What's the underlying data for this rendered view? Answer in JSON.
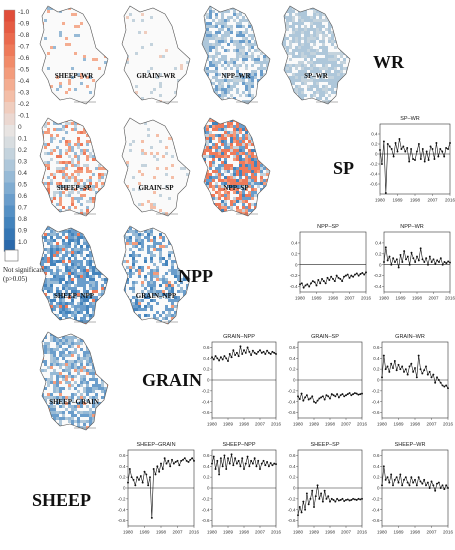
{
  "legend": {
    "ticks": [
      "-1.0",
      "-0.9",
      "-0.8",
      "-0.7",
      "-0.6",
      "-0.5",
      "-0.4",
      "-0.3",
      "-0.2",
      "-0.1",
      "0",
      "0.1",
      "0.2",
      "0.3",
      "0.4",
      "0.5",
      "0.6",
      "0.7",
      "0.8",
      "0.9",
      "1.0"
    ],
    "colors": [
      "#e04d3a",
      "#e55b43",
      "#ea6a4e",
      "#ee7a5a",
      "#f18b69",
      "#f39c7c",
      "#f4ad91",
      "#f4bea7",
      "#f0cdbe",
      "#ebd8d1",
      "#e8e4e2",
      "#d8dde0",
      "#c4d3dd",
      "#aec7da",
      "#97bad6",
      "#80acd1",
      "#6a9dcb",
      "#5590c4",
      "#4383bc",
      "#3576b4",
      "#2b69ab"
    ],
    "not_significant_line1": "Not significant",
    "not_significant_line2": "(p>0.05)"
  },
  "maps": [
    {
      "label": "SHEEP–WR"
    },
    {
      "label": "GRAIN–WR"
    },
    {
      "label": "NPP–WR"
    },
    {
      "label": "SP–WR"
    },
    {
      "label": "SHEEP–SP"
    },
    {
      "label": "GRAIN–SP"
    },
    {
      "label": "NPP–SP"
    },
    {
      "label": "SHEEP–NPP"
    },
    {
      "label": "GRAIN–NPP"
    },
    {
      "label": "SHEEP–GRAIN"
    }
  ],
  "row_labels": [
    "WR",
    "SP",
    "NPP",
    "GRAIN",
    "SHEEP"
  ],
  "chart_data": [
    {
      "type": "line",
      "title": "SP–WR",
      "x": [
        1980,
        1981,
        1982,
        1983,
        1984,
        1985,
        1986,
        1987,
        1988,
        1989,
        1990,
        1991,
        1992,
        1993,
        1994,
        1995,
        1996,
        1997,
        1998,
        1999,
        2000,
        2001,
        2002,
        2003,
        2004,
        2005,
        2006,
        2007,
        2008,
        2009,
        2010,
        2011,
        2012,
        2013,
        2014,
        2015,
        2016
      ],
      "values": [
        0.08,
        -0.2,
        0.25,
        -0.78,
        0.2,
        0.15,
        0.1,
        -0.05,
        0.22,
        0.05,
        0.3,
        0.1,
        0.15,
        0.05,
        0.12,
        -0.15,
        0.1,
        -0.1,
        -0.12,
        0.05,
        0.2,
        -0.1,
        0.1,
        -0.15,
        0.05,
        -0.12,
        0.15,
        0.1,
        -0.1,
        0.22,
        -0.05,
        0.1,
        0.05,
        -0.05,
        0.12,
        0.1,
        0.22
      ],
      "ylim": [
        -0.8,
        0.6
      ],
      "yticks": [
        -0.6,
        -0.4,
        -0.2,
        0,
        0.2,
        0.4
      ],
      "xticks": [
        1980,
        1989,
        1998,
        2007,
        2016
      ]
    },
    {
      "type": "line",
      "title": "NPP–SP",
      "x": [
        1980,
        1981,
        1982,
        1983,
        1984,
        1985,
        1986,
        1987,
        1988,
        1989,
        1990,
        1991,
        1992,
        1993,
        1994,
        1995,
        1996,
        1997,
        1998,
        1999,
        2000,
        2001,
        2002,
        2003,
        2004,
        2005,
        2006,
        2007,
        2008,
        2009,
        2010,
        2011,
        2012,
        2013,
        2014,
        2015,
        2016
      ],
      "values": [
        -0.36,
        -0.34,
        -0.42,
        -0.38,
        -0.36,
        -0.4,
        -0.34,
        -0.3,
        -0.32,
        -0.38,
        -0.28,
        -0.34,
        -0.26,
        -0.3,
        -0.34,
        -0.24,
        -0.28,
        -0.22,
        -0.26,
        -0.3,
        -0.2,
        -0.24,
        -0.26,
        -0.3,
        -0.22,
        -0.2,
        -0.18,
        -0.24,
        -0.2,
        -0.22,
        -0.18,
        -0.16,
        -0.2,
        -0.17,
        -0.15,
        -0.18,
        -0.14
      ],
      "ylim": [
        -0.5,
        0.6
      ],
      "yticks": [
        -0.4,
        -0.2,
        0,
        0.2,
        0.4
      ],
      "xticks": [
        1980,
        1989,
        1998,
        2007,
        2016
      ]
    },
    {
      "type": "line",
      "title": "NPP–WR",
      "x": [
        1980,
        1981,
        1982,
        1983,
        1984,
        1985,
        1986,
        1987,
        1988,
        1989,
        1990,
        1991,
        1992,
        1993,
        1994,
        1995,
        1996,
        1997,
        1998,
        1999,
        2000,
        2001,
        2002,
        2003,
        2004,
        2005,
        2006,
        2007,
        2008,
        2009,
        2010,
        2011,
        2012,
        2013,
        2014,
        2015,
        2016
      ],
      "values": [
        0.05,
        0.32,
        0.08,
        0.15,
        0.0,
        0.12,
        0.05,
        0.1,
        -0.05,
        0.18,
        0.05,
        0.25,
        0.1,
        0.15,
        0.0,
        0.22,
        0.12,
        0.05,
        0.15,
        0.08,
        0.3,
        0.1,
        0.05,
        0.12,
        0.0,
        0.15,
        0.05,
        0.1,
        0.02,
        0.08,
        0.05,
        0.12,
        0.0,
        0.05,
        0.03,
        0.06,
        0.04
      ],
      "ylim": [
        -0.5,
        0.6
      ],
      "yticks": [
        -0.4,
        -0.2,
        0,
        0.2,
        0.4
      ],
      "xticks": [
        1980,
        1989,
        1998,
        2007,
        2016
      ]
    },
    {
      "type": "line",
      "title": "GRAIN–NPP",
      "x": [
        1980,
        1981,
        1982,
        1983,
        1984,
        1985,
        1986,
        1987,
        1988,
        1989,
        1990,
        1991,
        1992,
        1993,
        1994,
        1995,
        1996,
        1997,
        1998,
        1999,
        2000,
        2001,
        2002,
        2003,
        2004,
        2005,
        2006,
        2007,
        2008,
        2009,
        2010,
        2011,
        2012,
        2013,
        2014,
        2015,
        2016
      ],
      "values": [
        0.42,
        0.38,
        0.44,
        0.4,
        0.36,
        0.42,
        0.38,
        0.44,
        0.4,
        0.35,
        0.48,
        0.42,
        0.55,
        0.46,
        0.5,
        0.44,
        0.62,
        0.48,
        0.55,
        0.5,
        0.6,
        0.52,
        0.46,
        0.54,
        0.5,
        0.48,
        0.52,
        0.55,
        0.5,
        0.52,
        0.48,
        0.54,
        0.5,
        0.48,
        0.52,
        0.5,
        0.48
      ],
      "ylim": [
        -0.7,
        0.7
      ],
      "yticks": [
        -0.6,
        -0.4,
        -0.2,
        0,
        0.2,
        0.4,
        0.6
      ],
      "xticks": [
        1980,
        1989,
        1998,
        2007,
        2016
      ]
    },
    {
      "type": "line",
      "title": "GRAIN–SP",
      "x": [
        1980,
        1981,
        1982,
        1983,
        1984,
        1985,
        1986,
        1987,
        1988,
        1989,
        1990,
        1991,
        1992,
        1993,
        1994,
        1995,
        1996,
        1997,
        1998,
        1999,
        2000,
        2001,
        2002,
        2003,
        2004,
        2005,
        2006,
        2007,
        2008,
        2009,
        2010,
        2011,
        2012,
        2013,
        2014,
        2015,
        2016
      ],
      "values": [
        -0.3,
        -0.35,
        -0.25,
        -0.38,
        -0.32,
        -0.28,
        -0.36,
        -0.34,
        -0.3,
        -0.4,
        -0.42,
        -0.38,
        -0.34,
        -0.32,
        -0.3,
        -0.36,
        -0.28,
        -0.3,
        -0.34,
        -0.26,
        -0.28,
        -0.3,
        -0.26,
        -0.32,
        -0.28,
        -0.26,
        -0.3,
        -0.28,
        -0.26,
        -0.24,
        -0.28,
        -0.26,
        -0.24,
        -0.25,
        -0.27,
        -0.26,
        -0.25
      ],
      "ylim": [
        -0.7,
        0.7
      ],
      "yticks": [
        -0.6,
        -0.4,
        -0.2,
        0,
        0.2,
        0.4,
        0.6
      ],
      "xticks": [
        1980,
        1989,
        1998,
        2007,
        2016
      ]
    },
    {
      "type": "line",
      "title": "GRAIN–WR",
      "x": [
        1980,
        1981,
        1982,
        1983,
        1984,
        1985,
        1986,
        1987,
        1988,
        1989,
        1990,
        1991,
        1992,
        1993,
        1994,
        1995,
        1996,
        1997,
        1998,
        1999,
        2000,
        2001,
        2002,
        2003,
        2004,
        2005,
        2006,
        2007,
        2008,
        2009,
        2010,
        2011,
        2012,
        2013,
        2014,
        2015,
        2016
      ],
      "values": [
        0.05,
        0.45,
        0.2,
        0.25,
        0.15,
        0.3,
        0.22,
        0.35,
        0.18,
        0.28,
        0.2,
        0.25,
        0.15,
        0.2,
        0.1,
        0.25,
        0.3,
        0.15,
        0.22,
        0.05,
        0.45,
        0.2,
        0.12,
        0.18,
        0.25,
        0.1,
        0.15,
        0.05,
        0.1,
        -0.05,
        0.05,
        0.0,
        -0.05,
        -0.1,
        -0.12,
        -0.1,
        -0.15
      ],
      "ylim": [
        -0.7,
        0.7
      ],
      "yticks": [
        -0.6,
        -0.4,
        -0.2,
        0,
        0.2,
        0.4,
        0.6
      ],
      "xticks": [
        1980,
        1989,
        1998,
        2007,
        2016
      ]
    },
    {
      "type": "line",
      "title": "SHEEP–GRAIN",
      "x": [
        1980,
        1981,
        1982,
        1983,
        1984,
        1985,
        1986,
        1987,
        1988,
        1989,
        1990,
        1991,
        1992,
        1993,
        1994,
        1995,
        1996,
        1997,
        1998,
        1999,
        2000,
        2001,
        2002,
        2003,
        2004,
        2005,
        2006,
        2007,
        2008,
        2009,
        2010,
        2011,
        2012,
        2013,
        2014,
        2015,
        2016
      ],
      "values": [
        0.1,
        0.35,
        0.2,
        0.15,
        0.05,
        0.2,
        0.15,
        0.22,
        0.1,
        0.3,
        0.25,
        0.05,
        0.2,
        -0.55,
        0.35,
        0.25,
        0.4,
        0.3,
        0.45,
        0.35,
        0.55,
        0.45,
        0.5,
        0.4,
        0.52,
        0.45,
        0.48,
        0.5,
        0.42,
        0.5,
        0.52,
        0.55,
        0.5,
        0.48,
        0.52,
        0.55,
        0.5
      ],
      "ylim": [
        -0.7,
        0.7
      ],
      "yticks": [
        -0.6,
        -0.4,
        -0.2,
        0,
        0.2,
        0.4,
        0.6
      ],
      "xticks": [
        1980,
        1989,
        1998,
        2007,
        2016
      ]
    },
    {
      "type": "line",
      "title": "SHEEP–NPP",
      "x": [
        1980,
        1981,
        1982,
        1983,
        1984,
        1985,
        1986,
        1987,
        1988,
        1989,
        1990,
        1991,
        1992,
        1993,
        1994,
        1995,
        1996,
        1997,
        1998,
        1999,
        2000,
        2001,
        2002,
        2003,
        2004,
        2005,
        2006,
        2007,
        2008,
        2009,
        2010,
        2011,
        2012,
        2013,
        2014,
        2015,
        2016
      ],
      "values": [
        0.45,
        0.58,
        0.35,
        0.5,
        0.25,
        0.55,
        0.4,
        0.6,
        0.35,
        0.55,
        0.45,
        0.62,
        0.42,
        0.55,
        0.45,
        0.5,
        0.4,
        0.55,
        0.35,
        0.45,
        0.58,
        0.4,
        0.5,
        0.45,
        0.55,
        0.4,
        0.5,
        0.35,
        0.45,
        0.5,
        0.42,
        0.48,
        0.4,
        0.46,
        0.42,
        0.45,
        0.44
      ],
      "ylim": [
        -0.7,
        0.7
      ],
      "yticks": [
        -0.6,
        -0.4,
        -0.2,
        0,
        0.2,
        0.4,
        0.6
      ],
      "xticks": [
        1980,
        1989,
        1998,
        2007,
        2016
      ]
    },
    {
      "type": "line",
      "title": "SHEEP–SP",
      "x": [
        1980,
        1981,
        1982,
        1983,
        1984,
        1985,
        1986,
        1987,
        1988,
        1989,
        1990,
        1991,
        1992,
        1993,
        1994,
        1995,
        1996,
        1997,
        1998,
        1999,
        2000,
        2001,
        2002,
        2003,
        2004,
        2005,
        2006,
        2007,
        2008,
        2009,
        2010,
        2011,
        2012,
        2013,
        2014,
        2015,
        2016
      ],
      "values": [
        -0.5,
        -0.35,
        -0.45,
        -0.25,
        -0.4,
        -0.1,
        -0.3,
        -0.2,
        -0.05,
        -0.35,
        -0.15,
        0.05,
        -0.2,
        -0.1,
        -0.25,
        -0.05,
        -0.2,
        -0.15,
        -0.25,
        -0.2,
        -0.22,
        -0.25,
        -0.2,
        -0.23,
        -0.22,
        -0.2,
        -0.24,
        -0.22,
        -0.21,
        -0.23,
        -0.22,
        -0.2,
        -0.21,
        -0.22,
        -0.2,
        -0.21,
        -0.2
      ],
      "ylim": [
        -0.7,
        0.7
      ],
      "yticks": [
        -0.6,
        -0.4,
        -0.2,
        0,
        0.2,
        0.4,
        0.6
      ],
      "xticks": [
        1980,
        1989,
        1998,
        2007,
        2016
      ]
    },
    {
      "type": "line",
      "title": "SHEEP–WR",
      "x": [
        1980,
        1981,
        1982,
        1983,
        1984,
        1985,
        1986,
        1987,
        1988,
        1989,
        1990,
        1991,
        1992,
        1993,
        1994,
        1995,
        1996,
        1997,
        1998,
        1999,
        2000,
        2001,
        2002,
        2003,
        2004,
        2005,
        2006,
        2007,
        2008,
        2009,
        2010,
        2011,
        2012,
        2013,
        2014,
        2015,
        2016
      ],
      "values": [
        0.05,
        0.4,
        0.15,
        0.2,
        0.1,
        0.25,
        0.05,
        0.15,
        0.2,
        0.1,
        0.25,
        0.05,
        0.15,
        0.2,
        0.1,
        0.05,
        0.2,
        0.1,
        0.15,
        0.05,
        0.2,
        0.12,
        0.08,
        0.15,
        0.05,
        0.1,
        0.0,
        0.12,
        0.05,
        -0.05,
        0.08,
        0.1,
        0.0,
        0.05,
        -0.02,
        0.05,
        0.0
      ],
      "ylim": [
        -0.7,
        0.7
      ],
      "yticks": [
        -0.6,
        -0.4,
        -0.2,
        0,
        0.2,
        0.4,
        0.6
      ],
      "xticks": [
        1980,
        1989,
        1998,
        2007,
        2016
      ]
    }
  ]
}
